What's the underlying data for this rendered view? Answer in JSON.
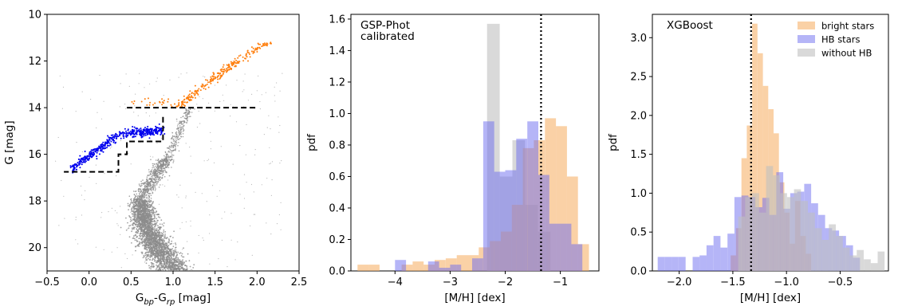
{
  "chart_data": [
    {
      "type": "scatter",
      "title": "",
      "xlabel": "G_bp-G_rp [mag]",
      "xlabel_main": "G",
      "xlabel_sub1": "bp",
      "xlabel_mid": "-G",
      "xlabel_sub2": "rp",
      "xlabel_tail": " [mag]",
      "ylabel": "G [mag]",
      "xlim": [
        -0.5,
        2.5
      ],
      "ylim": [
        21.0,
        10.0
      ],
      "y_inverted": true,
      "xticks": [
        -0.5,
        0.0,
        0.5,
        1.0,
        1.5,
        2.0,
        2.5
      ],
      "xtick_labels": [
        "−0.5",
        "0.0",
        "0.5",
        "1.0",
        "1.5",
        "2.0",
        "2.5"
      ],
      "yticks": [
        10,
        12,
        14,
        16,
        18,
        20
      ],
      "ytick_labels": [
        "10",
        "12",
        "14",
        "16",
        "18",
        "20"
      ],
      "colors": {
        "field": "#8c8c8c",
        "rgb": "#ff7f0e",
        "hb": "#0000ee",
        "cut": "#000000"
      },
      "selection_cuts": [
        {
          "x": [
            0.45,
            2.0
          ],
          "y": [
            14.0,
            14.0
          ]
        },
        {
          "x": [
            0.88,
            0.88,
            0.45,
            0.45,
            0.35,
            0.35,
            -0.3
          ],
          "y": [
            14.4,
            15.45,
            15.45,
            16.0,
            16.0,
            16.75,
            16.75
          ]
        }
      ]
    },
    {
      "type": "bar",
      "annotation": "GSP-Phot\ncalibrated",
      "annotation_lines": [
        "GSP-Phot",
        "calibrated"
      ],
      "xlabel": "[M/H] [dex]",
      "ylabel": "pdf",
      "xlim": [
        -4.8,
        -0.3
      ],
      "ylim": [
        0,
        1.63
      ],
      "xticks": [
        -4,
        -3,
        -2,
        -1
      ],
      "xtick_labels": [
        "−4",
        "−3",
        "−2",
        "−1"
      ],
      "yticks": [
        0.0,
        0.2,
        0.4,
        0.6,
        0.8,
        1.0,
        1.2,
        1.4,
        1.6
      ],
      "ytick_labels": [
        "0.0",
        "0.2",
        "0.4",
        "0.6",
        "0.8",
        "1.0",
        "1.2",
        "1.4",
        "1.6"
      ],
      "vline": -1.35,
      "series": [
        {
          "color": "#c0c0c0",
          "opacity": 0.6,
          "bin_start": -2.33,
          "bin_width": 0.23,
          "values": [
            1.57,
            0.6,
            0.83,
            0.42,
            0.25,
            0.0
          ]
        },
        {
          "color": "#f7b26b",
          "opacity": 0.6,
          "bin_start": -4.68,
          "bin_width": 0.2,
          "values": [
            0.04,
            0.04,
            0.0,
            0.0,
            0.04,
            0.06,
            0.04,
            0.07,
            0.08,
            0.1,
            0.1,
            0.15,
            0.19,
            0.25,
            0.42,
            0.78,
            0.83,
            0.97,
            0.92,
            0.6,
            0.17
          ]
        },
        {
          "color": "#6b6bf0",
          "opacity": 0.5,
          "bin_start": -4.0,
          "bin_width": 0.2,
          "values": [
            0.07,
            0.0,
            0.0,
            0.06,
            0.02,
            0.04,
            0.0,
            0.08,
            0.95,
            0.63,
            0.64,
            0.84,
            0.95,
            0.61,
            0.3,
            0.3,
            0.17
          ]
        }
      ]
    },
    {
      "type": "bar",
      "annotation": "XGBoost",
      "xlabel": "[M/H] [dex]",
      "ylabel": "pdf",
      "xlim": [
        -2.25,
        -0.05
      ],
      "ylim": [
        0,
        3.3
      ],
      "xticks": [
        -2.0,
        -1.5,
        -1.0,
        -0.5
      ],
      "xtick_labels": [
        "−2.0",
        "−1.5",
        "−1.0",
        "−0.5"
      ],
      "yticks": [
        0.0,
        0.5,
        1.0,
        1.5,
        2.0,
        2.5,
        3.0
      ],
      "ytick_labels": [
        "0.0",
        "0.5",
        "1.0",
        "1.5",
        "2.0",
        "2.5",
        "3.0"
      ],
      "vline": -1.33,
      "legend_position": "top-right",
      "series": [
        {
          "name": "bright stars",
          "color": "#f7b26b",
          "opacity": 0.6,
          "bin_start": -1.52,
          "bin_width": 0.05,
          "values": [
            0.2,
            0.55,
            1.45,
            1.87,
            3.18,
            2.8,
            2.38,
            2.08,
            1.77,
            1.14,
            0.75,
            0.35,
            0.9,
            0.45,
            0.22
          ]
        },
        {
          "name": "HB stars",
          "color": "#6b6bf0",
          "opacity": 0.5,
          "bin_start": -2.2,
          "bin_width": 0.065,
          "values": [
            0.18,
            0.18,
            0.18,
            0.18,
            0.0,
            0.18,
            0.2,
            0.33,
            0.45,
            0.3,
            0.48,
            0.95,
            0.97,
            0.95,
            0.82,
            0.94,
            0.72,
            1.27,
            0.8,
            1.0,
            1.02,
            1.12,
            0.87,
            0.72,
            0.55,
            0.52,
            0.45,
            0.33,
            0.17
          ]
        },
        {
          "name": "without HB",
          "color": "#c0c0c0",
          "opacity": 0.6,
          "bin_start": -1.45,
          "bin_width": 0.065,
          "values": [
            0.7,
            0.95,
            1.0,
            0.75,
            1.35,
            1.23,
            1.0,
            0.95,
            1.05,
            0.9,
            0.75,
            0.55,
            0.4,
            0.6,
            0.45,
            0.3,
            0.2,
            0.27,
            0.15,
            0.1,
            0.25
          ]
        }
      ]
    }
  ]
}
